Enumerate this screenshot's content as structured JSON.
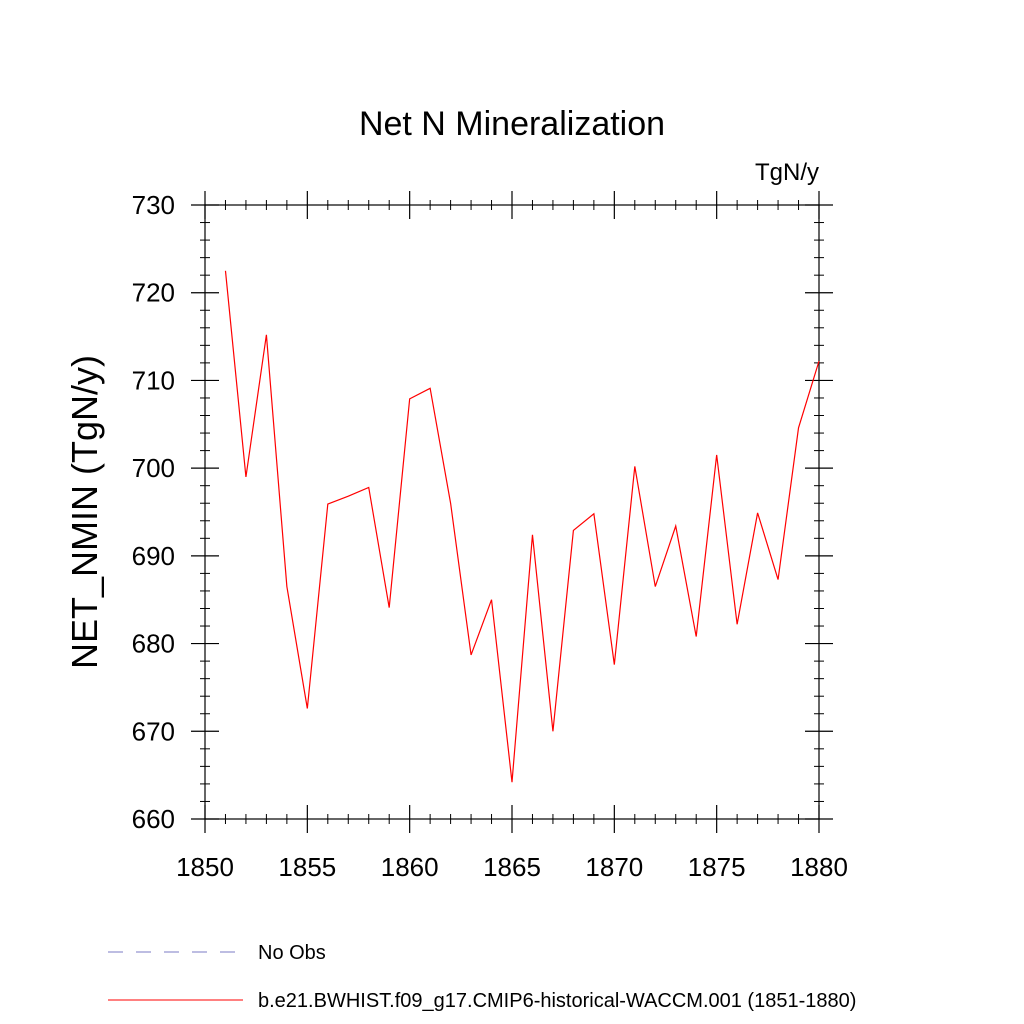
{
  "chart_data": {
    "type": "line",
    "title": "Net N Mineralization",
    "units_label": "TgN/y",
    "xlabel": "",
    "ylabel": "NET_NMIN  (TgN/y)",
    "xlim": [
      1850,
      1880
    ],
    "ylim": [
      660,
      730
    ],
    "x_ticks": [
      1850,
      1855,
      1860,
      1865,
      1870,
      1875,
      1880
    ],
    "y_ticks": [
      660,
      670,
      680,
      690,
      700,
      710,
      720,
      730
    ],
    "x_minor_step": 1,
    "y_minor_step": 2,
    "grid": false,
    "series": [
      {
        "name": "b.e21.BWHIST.f09_g17.CMIP6-historical-WACCM.001 (1851-1880)",
        "color": "#ff0000",
        "style": "solid",
        "x": [
          1851,
          1852,
          1853,
          1854,
          1855,
          1856,
          1857,
          1858,
          1859,
          1860,
          1861,
          1862,
          1863,
          1864,
          1865,
          1866,
          1867,
          1868,
          1869,
          1870,
          1871,
          1872,
          1873,
          1874,
          1875,
          1876,
          1877,
          1878,
          1879,
          1880
        ],
        "values": [
          722.5,
          699.0,
          715.2,
          686.5,
          672.6,
          695.9,
          696.8,
          697.8,
          684.1,
          707.9,
          709.1,
          696.0,
          678.7,
          685.0,
          664.2,
          692.4,
          670.0,
          692.9,
          694.8,
          677.6,
          700.2,
          686.5,
          693.4,
          680.8,
          701.5,
          682.2,
          694.9,
          687.3,
          704.6,
          712.2
        ]
      }
    ],
    "legend": [
      {
        "label": "No Obs",
        "color": "#7b7bc4",
        "style": "dashed"
      },
      {
        "label": "b.e21.BWHIST.f09_g17.CMIP6-historical-WACCM.001 (1851-1880)",
        "color": "#ff0000",
        "style": "solid"
      }
    ],
    "legend_position": "bottom-left"
  }
}
